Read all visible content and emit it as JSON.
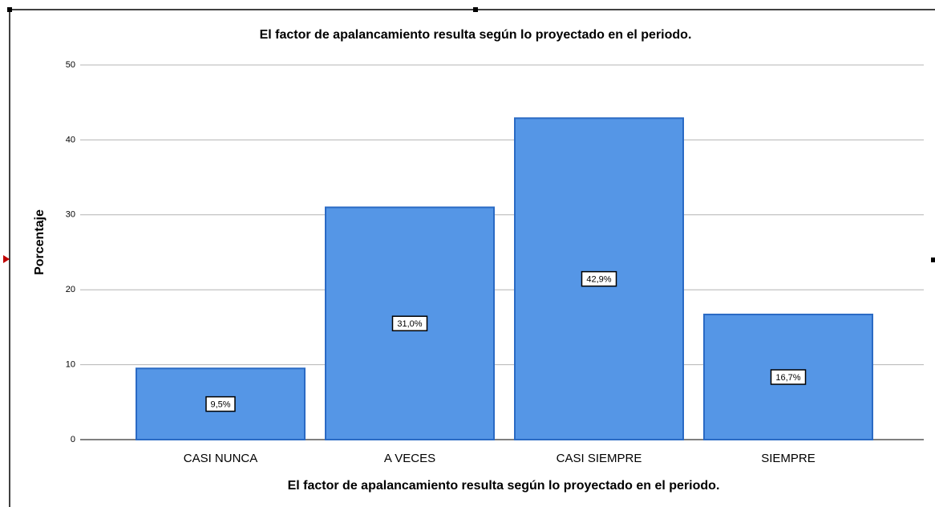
{
  "chart_data": {
    "type": "bar",
    "title": "El factor de apalancamiento resulta según lo proyectado en el periodo.",
    "x_label": "El factor de apalancamiento resulta según lo proyectado en el periodo.",
    "y_label": "Porcentaje",
    "categories": [
      "CASI NUNCA",
      "A VECES",
      "CASI SIEMPRE",
      "SIEMPRE"
    ],
    "values": [
      9.5,
      31.0,
      42.9,
      16.7
    ],
    "value_labels": [
      "9,5%",
      "31,0%",
      "42,9%",
      "16,7%"
    ],
    "color": "#5596e6",
    "ylim": [
      0,
      52
    ],
    "yticks": [
      0,
      10,
      20,
      30,
      40,
      50
    ],
    "grid": true
  }
}
